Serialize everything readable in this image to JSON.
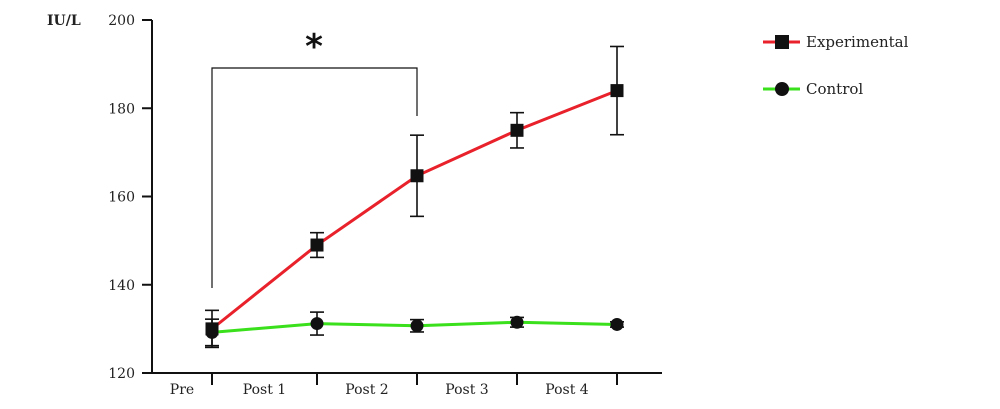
{
  "chart_data": {
    "type": "line",
    "ylabel": "IU/L",
    "xlabel": "",
    "title": "",
    "ylim": [
      120,
      200
    ],
    "yticks": [
      120,
      140,
      160,
      180,
      200
    ],
    "categories": [
      "Pre",
      "Post 1",
      "Post 2",
      "Post 3",
      "Post 4"
    ],
    "grid": false,
    "legend_position": "top-right",
    "significance": {
      "from": "Pre",
      "to": "Post 2",
      "label": "*"
    },
    "series": [
      {
        "name": "Experimental",
        "color": "#e8212b",
        "marker": "square",
        "values": [
          130,
          149,
          164.7,
          175,
          184
        ],
        "error": [
          4.2,
          2.8,
          9.2,
          4.0,
          10.0
        ]
      },
      {
        "name": "Control",
        "color": "#39e01b",
        "marker": "circle",
        "values": [
          129.2,
          131.2,
          130.7,
          131.5,
          131
        ],
        "error": [
          3.0,
          2.6,
          1.4,
          1.1,
          0.6
        ]
      }
    ]
  }
}
